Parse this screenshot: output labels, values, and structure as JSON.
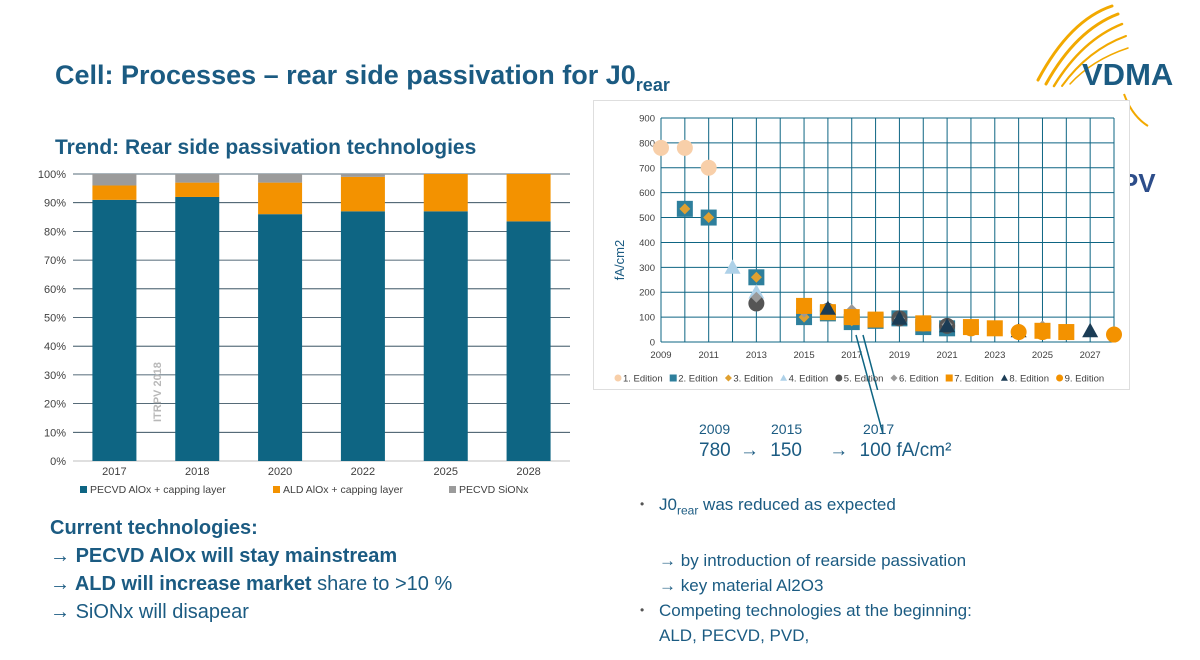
{
  "slide": {
    "title_main": "Cell: Processes – rear side passivation for J0",
    "title_sub": "rear",
    "vdma_logo_text": "VDMA",
    "itrpv_logo_text": "ITRPV"
  },
  "colors": {
    "teal": "#0e6583",
    "orange": "#f39200",
    "gray": "#9b9b9b",
    "title": "#1b5b82"
  },
  "bar_title": "Trend: Rear side passivation technologies",
  "chart_data": [
    {
      "type": "bar",
      "stacked": true,
      "title": "",
      "watermark": "ITRPV 2018",
      "categories": [
        "2017",
        "2018",
        "2020",
        "2022",
        "2025",
        "2028"
      ],
      "yticks": [
        "0%",
        "10%",
        "20%",
        "30%",
        "40%",
        "50%",
        "60%",
        "70%",
        "80%",
        "90%",
        "100%"
      ],
      "ylim": [
        0,
        100
      ],
      "legend_position": "bottom",
      "series": [
        {
          "name": "PECVD AlOx + capping layer",
          "color": "#0e6583",
          "values": [
            91,
            92,
            86,
            87,
            87,
            83.5
          ]
        },
        {
          "name": "ALD AlOx + capping layer",
          "color": "#f39200",
          "values": [
            5,
            5,
            11,
            12,
            13,
            16.5
          ]
        },
        {
          "name": "PECVD SiONx",
          "color": "#9b9b9b",
          "values": [
            4,
            3,
            3,
            1,
            0,
            0
          ]
        }
      ]
    },
    {
      "type": "scatter",
      "ylabel": "fA/cm2",
      "xlim": [
        2009,
        2028
      ],
      "ylim": [
        0,
        900
      ],
      "yticks": [
        "0",
        "100",
        "200",
        "300",
        "400",
        "500",
        "600",
        "700",
        "800",
        "900"
      ],
      "xticks": [
        "2009",
        "2011",
        "2013",
        "2015",
        "2017",
        "2019",
        "2021",
        "2023",
        "2025",
        "2027"
      ],
      "grid": true,
      "legend_position": "bottom",
      "series": [
        {
          "name": "1. Edition",
          "marker": "circle",
          "color": "#f8cfa9",
          "points": [
            [
              2009,
              780
            ],
            [
              2010,
              780
            ],
            [
              2011,
              700
            ]
          ]
        },
        {
          "name": "2. Edition",
          "marker": "square",
          "color": "#2e7f9c",
          "points": [
            [
              2010,
              535
            ],
            [
              2011,
              500
            ],
            [
              2013,
              260
            ],
            [
              2015,
              100
            ],
            [
              2016,
              115
            ],
            [
              2017,
              80
            ],
            [
              2018,
              85
            ],
            [
              2019,
              95
            ],
            [
              2020,
              60
            ],
            [
              2021,
              55
            ]
          ]
        },
        {
          "name": "3. Edition",
          "marker": "diamond",
          "color": "#e0a030",
          "points": [
            [
              2010,
              535
            ],
            [
              2011,
              500
            ],
            [
              2013,
              260
            ],
            [
              2015,
              100
            ],
            [
              2016,
              115
            ],
            [
              2017,
              85
            ]
          ]
        },
        {
          "name": "4. Edition",
          "marker": "triangle",
          "color": "#aed1e8",
          "points": [
            [
              2012,
              300
            ],
            [
              2013,
              200
            ],
            [
              2015,
              140
            ]
          ]
        },
        {
          "name": "5. Edition",
          "marker": "circle",
          "color": "#555555",
          "points": [
            [
              2013,
              155
            ],
            [
              2016,
              125
            ],
            [
              2019,
              95
            ],
            [
              2021,
              65
            ]
          ]
        },
        {
          "name": "6. Edition",
          "marker": "diamond",
          "color": "#999999",
          "points": [
            [
              2013,
              180
            ],
            [
              2015,
              120
            ],
            [
              2017,
              130
            ],
            [
              2019,
              95
            ],
            [
              2021,
              70
            ],
            [
              2023,
              60
            ],
            [
              2025,
              65
            ]
          ]
        },
        {
          "name": "7. Edition",
          "marker": "square",
          "color": "#f39200",
          "points": [
            [
              2015,
              145
            ],
            [
              2016,
              120
            ],
            [
              2017,
              100
            ],
            [
              2018,
              90
            ],
            [
              2020,
              75
            ],
            [
              2022,
              60
            ],
            [
              2023,
              55
            ],
            [
              2025,
              45
            ],
            [
              2026,
              40
            ]
          ]
        },
        {
          "name": "8. Edition",
          "marker": "triangle",
          "color": "#1b3c55",
          "points": [
            [
              2016,
              135
            ],
            [
              2019,
              95
            ],
            [
              2021,
              65
            ],
            [
              2024,
              45
            ],
            [
              2027,
              45
            ]
          ]
        },
        {
          "name": "9. Edition",
          "marker": "circle",
          "color": "#f39200",
          "points": [
            [
              2017,
              100
            ],
            [
              2020,
              75
            ],
            [
              2022,
              55
            ],
            [
              2024,
              40
            ],
            [
              2025,
              40
            ],
            [
              2028,
              30
            ]
          ]
        }
      ]
    }
  ],
  "annotation": {
    "years": [
      "2009",
      "2015",
      "2017"
    ],
    "values": [
      "780",
      "150",
      "100 fA/cm²"
    ],
    "arrow": "→"
  },
  "current_tech": {
    "heading": "Current technologies:",
    "arrow": "→",
    "line1_bold": "PECVD AlOx will stay mainstream",
    "line2_bold": "ALD will increase market",
    "line2_rest": " share to >10 %",
    "line3": "SiONx will disapear"
  },
  "bullets": {
    "b1_main": "J0",
    "b1_sub": "rear",
    "b1_rest": " was reduced as expected",
    "sub1": "by introduction of rearside passivation",
    "sub2": "key material Al2O3",
    "b2_line1": "Competing technologies at the beginning:",
    "b2_line2": "ALD, PECVD, PVD,",
    "arrow": "→",
    "dot": "•"
  }
}
